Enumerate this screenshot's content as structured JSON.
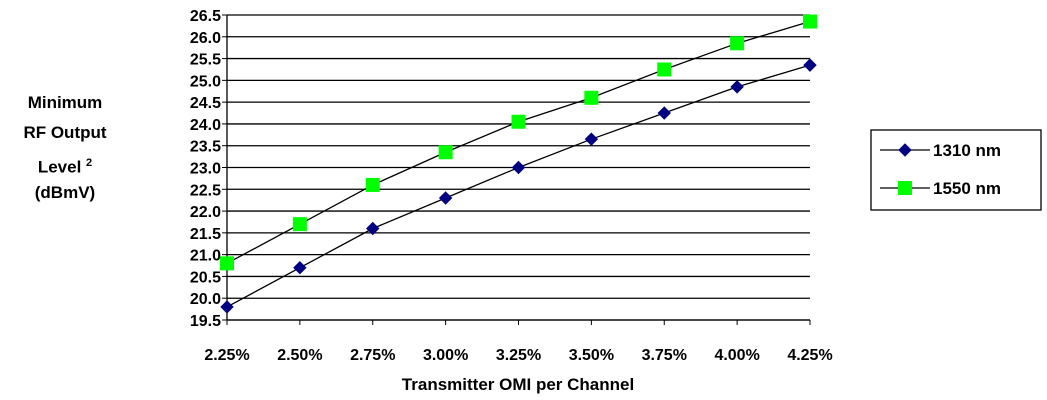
{
  "chart_data": {
    "type": "line",
    "title": "",
    "xlabel": "Transmitter OMI per Channel",
    "ylabel_lines": [
      "Minimum",
      "RF Output",
      "Level",
      "(dBmV)"
    ],
    "ylabel_superscript": "2",
    "x_categories": [
      "2.25%",
      "2.50%",
      "2.75%",
      "3.00%",
      "3.25%",
      "3.50%",
      "3.75%",
      "4.00%",
      "4.25%"
    ],
    "y_ticks": [
      "19.5",
      "20.0",
      "20.5",
      "21.0",
      "21.5",
      "22.0",
      "22.5",
      "23.0",
      "23.5",
      "24.0",
      "24.5",
      "25.0",
      "25.5",
      "26.0",
      "26.5"
    ],
    "ylim": [
      19.5,
      26.5
    ],
    "grid": true,
    "legend_position": "right",
    "series": [
      {
        "name": "1310 nm",
        "marker": "diamond",
        "color": "#000080",
        "values": [
          19.8,
          20.7,
          21.6,
          22.3,
          23.0,
          23.65,
          24.25,
          24.85,
          25.35
        ]
      },
      {
        "name": "1550 nm",
        "marker": "square",
        "color": "#00ff00",
        "values": [
          20.8,
          21.7,
          22.6,
          23.35,
          24.05,
          24.6,
          25.25,
          25.85,
          26.35
        ]
      }
    ]
  }
}
